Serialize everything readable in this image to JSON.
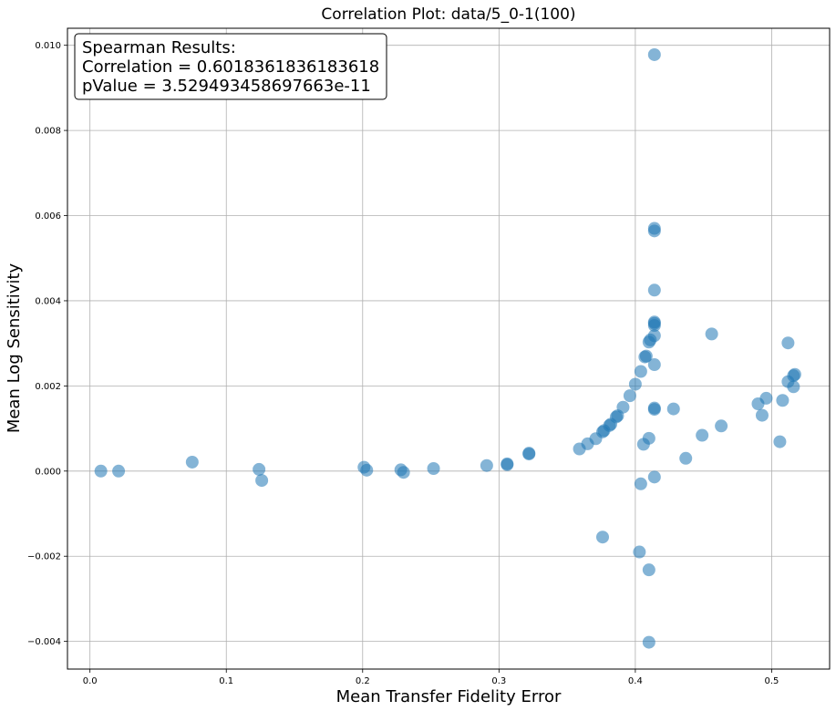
{
  "chart_data": {
    "type": "scatter",
    "title": "Correlation Plot: data/5_0-1(100)",
    "xlabel": "Mean Transfer Fidelity Error",
    "ylabel": "Mean Log Sensitivity",
    "xlim": [
      -0.0165,
      0.5425
    ],
    "ylim": [
      -0.00465,
      0.0104
    ],
    "x_ticks": [
      0.0,
      0.1,
      0.2,
      0.3,
      0.4,
      0.5
    ],
    "x_tick_labels": [
      "0.0",
      "0.1",
      "0.2",
      "0.3",
      "0.4",
      "0.5"
    ],
    "y_ticks": [
      -0.004,
      -0.002,
      0.0,
      0.002,
      0.004,
      0.006,
      0.008,
      0.01
    ],
    "y_tick_labels": [
      "−0.004",
      "−0.002",
      "0.000",
      "0.002",
      "0.004",
      "0.006",
      "0.008",
      "0.010"
    ],
    "grid": true,
    "marker_color": "#1f77b4",
    "marker_alpha": 0.55,
    "annotation": {
      "heading": "Spearman Results:",
      "correlation": "Correlation = 0.6018361836183618",
      "pvalue": "pValue = 3.529493458697663e-11",
      "placement": "top-left"
    },
    "points": [
      {
        "x": 0.008,
        "y": 0.0
      },
      {
        "x": 0.021,
        "y": 0.0
      },
      {
        "x": 0.075,
        "y": 0.00021
      },
      {
        "x": 0.124,
        "y": 4e-05
      },
      {
        "x": 0.126,
        "y": -0.00022
      },
      {
        "x": 0.201,
        "y": 9e-05
      },
      {
        "x": 0.203,
        "y": 2e-05
      },
      {
        "x": 0.228,
        "y": 3e-05
      },
      {
        "x": 0.23,
        "y": -3e-05
      },
      {
        "x": 0.252,
        "y": 6e-05
      },
      {
        "x": 0.291,
        "y": 0.00013
      },
      {
        "x": 0.306,
        "y": 0.00015
      },
      {
        "x": 0.306,
        "y": 0.00017
      },
      {
        "x": 0.322,
        "y": 0.0004
      },
      {
        "x": 0.322,
        "y": 0.00042
      },
      {
        "x": 0.359,
        "y": 0.00052
      },
      {
        "x": 0.365,
        "y": 0.00064
      },
      {
        "x": 0.371,
        "y": 0.00076
      },
      {
        "x": 0.376,
        "y": -0.00155
      },
      {
        "x": 0.376,
        "y": 0.00092
      },
      {
        "x": 0.377,
        "y": 0.00095
      },
      {
        "x": 0.381,
        "y": 0.00107
      },
      {
        "x": 0.382,
        "y": 0.0011
      },
      {
        "x": 0.386,
        "y": 0.00127
      },
      {
        "x": 0.387,
        "y": 0.0013
      },
      {
        "x": 0.391,
        "y": 0.0015
      },
      {
        "x": 0.396,
        "y": 0.00177
      },
      {
        "x": 0.4,
        "y": 0.00204
      },
      {
        "x": 0.403,
        "y": -0.0019
      },
      {
        "x": 0.404,
        "y": -0.0003
      },
      {
        "x": 0.404,
        "y": 0.00234
      },
      {
        "x": 0.406,
        "y": 0.00063
      },
      {
        "x": 0.407,
        "y": 0.00268
      },
      {
        "x": 0.408,
        "y": 0.0027
      },
      {
        "x": 0.41,
        "y": -0.00402
      },
      {
        "x": 0.41,
        "y": -0.00232
      },
      {
        "x": 0.41,
        "y": 0.00077
      },
      {
        "x": 0.41,
        "y": 0.00303
      },
      {
        "x": 0.411,
        "y": 0.00308
      },
      {
        "x": 0.414,
        "y": -0.00014
      },
      {
        "x": 0.414,
        "y": 0.00145
      },
      {
        "x": 0.414,
        "y": 0.00148
      },
      {
        "x": 0.414,
        "y": 0.0025
      },
      {
        "x": 0.414,
        "y": 0.00318
      },
      {
        "x": 0.414,
        "y": 0.00342
      },
      {
        "x": 0.414,
        "y": 0.00347
      },
      {
        "x": 0.414,
        "y": 0.0035
      },
      {
        "x": 0.414,
        "y": 0.00425
      },
      {
        "x": 0.414,
        "y": 0.00564
      },
      {
        "x": 0.414,
        "y": 0.0057
      },
      {
        "x": 0.414,
        "y": 0.00978
      },
      {
        "x": 0.428,
        "y": 0.00146
      },
      {
        "x": 0.437,
        "y": 0.0003
      },
      {
        "x": 0.449,
        "y": 0.00084
      },
      {
        "x": 0.456,
        "y": 0.00322
      },
      {
        "x": 0.463,
        "y": 0.00106
      },
      {
        "x": 0.49,
        "y": 0.00158
      },
      {
        "x": 0.493,
        "y": 0.00131
      },
      {
        "x": 0.496,
        "y": 0.00171
      },
      {
        "x": 0.506,
        "y": 0.00069
      },
      {
        "x": 0.508,
        "y": 0.00166
      },
      {
        "x": 0.512,
        "y": 0.0021
      },
      {
        "x": 0.512,
        "y": 0.00301
      },
      {
        "x": 0.516,
        "y": 0.00198
      },
      {
        "x": 0.516,
        "y": 0.00224
      },
      {
        "x": 0.517,
        "y": 0.00227
      }
    ]
  }
}
